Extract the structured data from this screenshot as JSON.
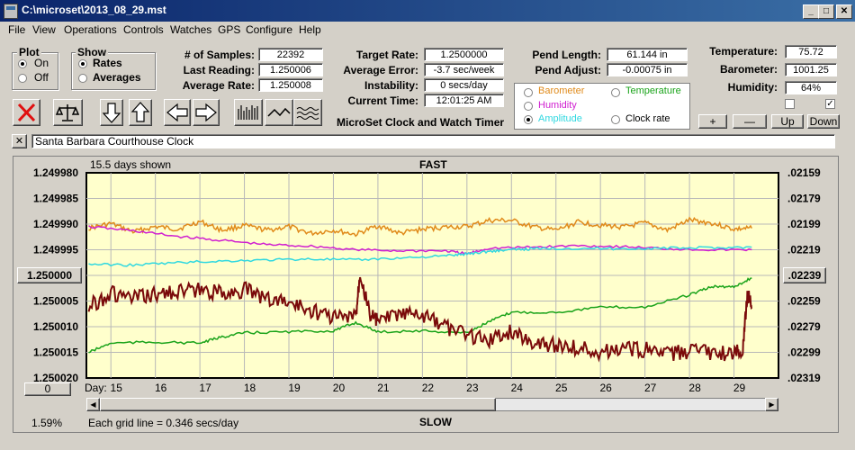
{
  "window": {
    "title": "C:\\microset\\2013_08_29.mst"
  },
  "menu": [
    "File",
    "View",
    "Operations",
    "Controls",
    "Watches",
    "GPS",
    "Configure",
    "Help"
  ],
  "plot_group": {
    "label": "Plot",
    "options": [
      "On",
      "Off"
    ],
    "selected": "On"
  },
  "show_group": {
    "label": "Show",
    "options": [
      "Rates",
      "Averages"
    ],
    "selected": "Rates"
  },
  "stats": {
    "samples_label": "# of Samples:",
    "samples": "22392",
    "last_reading_label": "Last Reading:",
    "last_reading": "1.250006",
    "average_rate_label": "Average Rate:",
    "average_rate": "1.250008",
    "target_rate_label": "Target Rate:",
    "target_rate": "1.2500000",
    "average_error_label": "Average Error:",
    "average_error": "-3.7 sec/week",
    "instability_label": "Instability:",
    "instability": "0 secs/day",
    "current_time_label": "Current Time:",
    "current_time": "12:01:25 AM",
    "pend_length_label": "Pend Length:",
    "pend_length": "61.144 in",
    "pend_adjust_label": "Pend Adjust:",
    "pend_adjust": "-0.00075 in",
    "temperature_label": "Temperature:",
    "temperature": "75.72",
    "barometer_label": "Barometer:",
    "barometer": "1001.25",
    "humidity_label": "Humidity:",
    "humidity": "64%"
  },
  "app_name": "MicroSet Clock and Watch Timer",
  "series_select": {
    "barometer": "Barometer",
    "temperature": "Temperature",
    "humidity": "Humidity",
    "amplitude": "Amplitude",
    "clock_rate": "Clock rate",
    "selected": "Amplitude"
  },
  "adjust_buttons": {
    "plus": "+",
    "minus": "—",
    "up": "Up",
    "down": "Down"
  },
  "checkboxes": [
    false,
    true
  ],
  "clock_name": "Santa Barbara Courthouse Clock",
  "close_x": "✕",
  "graph": {
    "days_shown": "15.5 days shown",
    "fast": "FAST",
    "slow": "SLOW",
    "grid_note": "Each grid line = 0.346 secs/day",
    "percent": "1.59%",
    "day_label": "Day:",
    "center_button": "1.250000",
    "right_center_button": ".02239",
    "offset_button": "0"
  },
  "colors": {
    "barometer": "#e08a1a",
    "temperature": "#1aa31a",
    "humidity": "#d020d0",
    "amplitude": "#30d8e0",
    "clock_rate": "#7a0a0a",
    "plot_bg": "#ffffcc"
  },
  "chart_data": {
    "type": "line",
    "xlabel": "Day:",
    "x_ticks": [
      15,
      16,
      17,
      18,
      19,
      20,
      21,
      22,
      23,
      24,
      25,
      26,
      27,
      28,
      29
    ],
    "xlim": [
      14.45,
      30
    ],
    "left_axis_ticks": [
      "1.249980",
      "1.249985",
      "1.249990",
      "1.249995",
      "1.250000",
      "1.250005",
      "1.250010",
      "1.250015",
      "1.250020"
    ],
    "right_axis_ticks": [
      ".02159",
      ".02179",
      ".02199",
      ".02219",
      ".02239",
      ".02259",
      ".02279",
      ".02299",
      ".02319"
    ],
    "ylim_left": [
      1.24998,
      1.25002
    ],
    "series": [
      {
        "name": "Barometer",
        "color": "#e08a1a",
        "x": [
          14.5,
          15,
          15.5,
          16,
          16.5,
          17,
          17.5,
          18,
          18.5,
          19,
          19.5,
          20,
          20.5,
          21,
          21.5,
          22,
          22.5,
          23,
          23.5,
          24,
          24.5,
          25,
          25.5,
          26,
          26.5,
          27,
          27.5,
          28,
          28.5,
          29,
          29.4
        ],
        "y": [
          1.2499908,
          1.2499899,
          1.2499915,
          1.2499905,
          1.249991,
          1.2499895,
          1.2499912,
          1.2499903,
          1.2499912,
          1.2499905,
          1.2499918,
          1.2499912,
          1.249992,
          1.2499903,
          1.2499918,
          1.249991,
          1.2499906,
          1.2499905,
          1.2499893,
          1.2499893,
          1.2499906,
          1.2499912,
          1.2499896,
          1.2499902,
          1.2499906,
          1.2499898,
          1.2499912,
          1.2499892,
          1.2499898,
          1.249991,
          1.2499908
        ]
      },
      {
        "name": "Humidity",
        "color": "#d020d0",
        "x": [
          14.5,
          15.5,
          16.5,
          17.5,
          18.5,
          19.5,
          20.5,
          21.5,
          22.5,
          23,
          23.5,
          24.5,
          25.5,
          26.5,
          27.5,
          28.5,
          29.4
        ],
        "y": [
          1.2499905,
          1.2499913,
          1.2499924,
          1.2499932,
          1.249994,
          1.2499943,
          1.249995,
          1.2499952,
          1.2499952,
          1.2499958,
          1.2499947,
          1.2499945,
          1.2499942,
          1.2499944,
          1.2499948,
          1.249995,
          1.249995
        ]
      },
      {
        "name": "Amplitude",
        "color": "#30d8e0",
        "x": [
          14.5,
          15.5,
          16.5,
          17.5,
          18.5,
          19.5,
          20.5,
          21.5,
          22.5,
          23,
          23.5,
          24,
          24.5,
          25.5,
          26.5,
          27.5,
          28.5,
          29.4
        ],
        "y": [
          1.2499978,
          1.249998,
          1.2499975,
          1.2499972,
          1.249997,
          1.2499968,
          1.249997,
          1.2499966,
          1.2499962,
          1.2499958,
          1.2499953,
          1.249995,
          1.2499948,
          1.2499947,
          1.2499948,
          1.2499947,
          1.2499946,
          1.2499945
        ]
      },
      {
        "name": "Temperature",
        "color": "#1aa31a",
        "x": [
          14.5,
          15,
          16,
          17,
          17.5,
          18,
          19,
          20,
          20.5,
          21,
          22,
          23,
          23.5,
          24,
          25,
          26,
          27,
          28,
          28.5,
          29,
          29.4
        ],
        "y": [
          1.250015,
          1.2500132,
          1.250013,
          1.2500132,
          1.250012,
          1.2500112,
          1.250011,
          1.2500108,
          1.2500092,
          1.250011,
          1.2500108,
          1.2500112,
          1.250009,
          1.2500072,
          1.2500072,
          1.2500062,
          1.2500062,
          1.2500038,
          1.2500022,
          1.2500022,
          1.2500005
        ]
      },
      {
        "name": "Clock rate",
        "color": "#7a0a0a",
        "x": [
          14.5,
          15,
          15.5,
          16,
          16.5,
          17,
          17.5,
          18,
          18.5,
          19,
          19.5,
          20,
          20.5,
          20.6,
          20.8,
          21,
          21.5,
          22,
          22.5,
          23,
          23.5,
          24,
          24.5,
          25,
          25.5,
          26,
          26.5,
          27,
          27.5,
          28,
          28.5,
          29,
          29.2,
          29.3,
          29.4
        ],
        "y": [
          1.250006,
          1.2500035,
          1.2500045,
          1.2500038,
          1.250003,
          1.250003,
          1.2500035,
          1.2500028,
          1.2500045,
          1.2500052,
          1.2500068,
          1.250008,
          1.2500082,
          1.249999,
          1.2500072,
          1.250009,
          1.2500075,
          1.250008,
          1.25001,
          1.2500115,
          1.2500125,
          1.250011,
          1.250013,
          1.2500135,
          1.250014,
          1.250015,
          1.2500142,
          1.2500145,
          1.2500155,
          1.2500148,
          1.2500152,
          1.250015,
          1.2500145,
          1.2500035,
          1.2500065
        ]
      }
    ]
  }
}
